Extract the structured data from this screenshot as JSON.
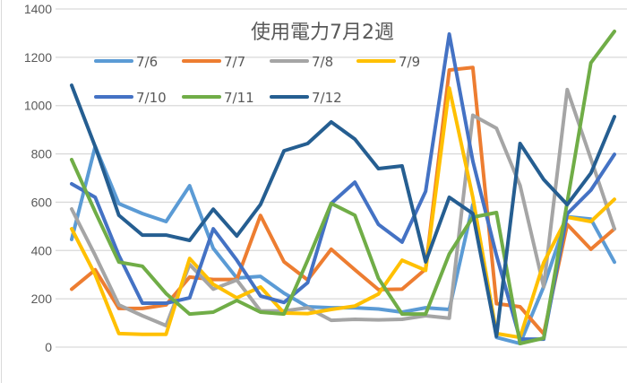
{
  "chart_data": {
    "type": "line",
    "title": "使用電力7月2週",
    "xlabel": "",
    "ylabel": "",
    "ylim": [
      0,
      1400
    ],
    "yticks": [
      "0",
      "200",
      "400",
      "600",
      "800",
      "1000",
      "1200",
      "1400"
    ],
    "grid": true,
    "legend_position": "top",
    "x": [
      0,
      1,
      2,
      3,
      4,
      5,
      6,
      7,
      8,
      9,
      10,
      11,
      12,
      13,
      14,
      15,
      16,
      17,
      18,
      19,
      20,
      21,
      22,
      23
    ],
    "series": [
      {
        "name": "7/6",
        "color": "#5B9BD5",
        "values": [
          446,
          831,
          594,
          553,
          520,
          668,
          409,
          286,
          293,
          223,
          167,
          163,
          163,
          158,
          145,
          163,
          156,
          590,
          40,
          15,
          250,
          540,
          530,
          352
        ]
      },
      {
        "name": "7/7",
        "color": "#ED7D31",
        "values": [
          240,
          320,
          160,
          160,
          175,
          290,
          280,
          280,
          545,
          353,
          278,
          405,
          320,
          238,
          240,
          323,
          1147,
          1158,
          180,
          167,
          55,
          508,
          405,
          490
        ]
      },
      {
        "name": "7/8",
        "color": "#A5A5A5",
        "values": [
          572,
          380,
          175,
          130,
          89,
          342,
          240,
          278,
          150,
          150,
          163,
          111,
          115,
          113,
          115,
          130,
          120,
          960,
          906,
          670,
          250,
          1066,
          780,
          490
        ]
      },
      {
        "name": "7/9",
        "color": "#FFC000",
        "values": [
          490,
          300,
          56,
          53,
          53,
          367,
          260,
          204,
          249,
          141,
          139,
          156,
          170,
          220,
          360,
          318,
          1073,
          620,
          56,
          40,
          350,
          538,
          520,
          612
        ]
      },
      {
        "name": "7/10",
        "color": "#4472C4",
        "values": [
          676,
          620,
          380,
          182,
          182,
          204,
          490,
          360,
          212,
          185,
          267,
          595,
          683,
          508,
          435,
          645,
          1296,
          770,
          380,
          33,
          33,
          552,
          650,
          798
        ]
      },
      {
        "name": "7/11",
        "color": "#70AD47",
        "values": [
          776,
          560,
          352,
          335,
          222,
          137,
          145,
          193,
          145,
          137,
          360,
          595,
          546,
          285,
          137,
          137,
          386,
          538,
          557,
          15,
          37,
          600,
          1177,
          1307
        ]
      },
      {
        "name": "7/12",
        "color": "#255E91",
        "values": [
          1084,
          830,
          546,
          464,
          464,
          442,
          571,
          460,
          590,
          813,
          843,
          932,
          861,
          739,
          750,
          353,
          620,
          553,
          45,
          843,
          694,
          590,
          720,
          954
        ]
      }
    ]
  }
}
